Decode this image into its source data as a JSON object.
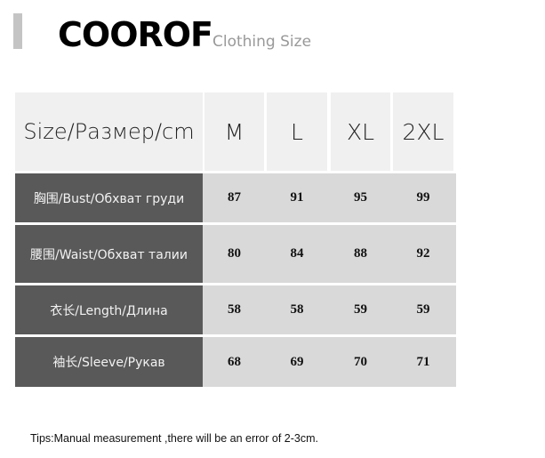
{
  "header": {
    "brand": "COOROF",
    "subtitle": "Clothing Size"
  },
  "table": {
    "columns": [
      "Size/Размер/cm",
      "M",
      "L",
      "XL",
      "2XL"
    ],
    "rows": [
      {
        "label": "胸围/Bust/Обхват груди",
        "values": [
          "87",
          "91",
          "95",
          "99"
        ]
      },
      {
        "label": "腰围/Waist/Обхват талии",
        "values": [
          "80",
          "84",
          "88",
          "92"
        ]
      },
      {
        "label": "衣长/Length/Длина",
        "values": [
          "58",
          "58",
          "59",
          "59"
        ]
      },
      {
        "label": "袖长/Sleeve/Рукав",
        "values": [
          "68",
          "69",
          "70",
          "71"
        ]
      }
    ]
  },
  "tips": "Tips:Manual measurement ,there will be an error of 2-3cm."
}
